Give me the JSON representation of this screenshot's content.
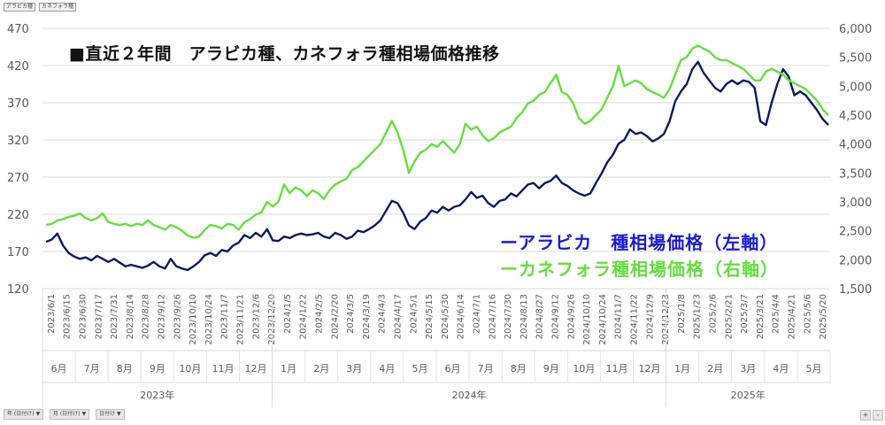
{
  "toolbar": {
    "field_1": "アラビカ種",
    "field_2": "カネフォラ種",
    "chips": [
      "年 (日付け)",
      "月 (日付け)",
      "日付け"
    ]
  },
  "zoom": {
    "plus": "+",
    "minus": "-"
  },
  "colors": {
    "arabica": "#0d1a5c",
    "canephora": "#66dd3f",
    "arabica_legend": "#1a1ad6"
  },
  "chart_data": {
    "type": "line",
    "title": "■直近２年間　アラビカ種、カネフォラ種相場価格推移",
    "legend": {
      "placement": "bottom-right",
      "entries": [
        "ーアラビカ　種相場価格（左軸）",
        "ーカネフォラ種相場価格（右軸）"
      ]
    },
    "y_left": {
      "ticks": [
        "120",
        "170",
        "220",
        "270",
        "320",
        "370",
        "420",
        "470"
      ],
      "range": [
        120,
        470
      ]
    },
    "y_right": {
      "ticks": [
        "1,500",
        "2,000",
        "2,500",
        "3,000",
        "3,500",
        "4,000",
        "4,500",
        "5,000",
        "5,500",
        "6,000"
      ],
      "range": [
        1500,
        6000
      ]
    },
    "x_labels": [
      "2023/6/1",
      "2023/6/15",
      "2023/6/30",
      "2023/7/17",
      "2023/7/31",
      "2023/8/14",
      "2023/8/28",
      "2023/9/12",
      "2023/9/26",
      "2023/10/10",
      "2023/10/24",
      "2023/11/7",
      "2023/11/21",
      "2023/12/6",
      "2023/12/20",
      "2024/1/5",
      "2024/1/22",
      "2024/2/5",
      "2024/2/20",
      "2024/3/5",
      "2024/3/19",
      "2024/4/3",
      "2024/4/17",
      "2024/5/1",
      "2024/5/15",
      "2024/5/30",
      "2024/6/14",
      "2024/7/1",
      "2024/7/16",
      "2024/7/30",
      "2024/8/13",
      "2024/8/27",
      "2024/9/12",
      "2024/9/26",
      "2024/10/10",
      "2024/10/24",
      "2024/11/7",
      "2024/11/22",
      "2024/12/9",
      "2024/12/23",
      "2025/1/8",
      "2025/1/23",
      "2025/2/6",
      "2025/2/21",
      "2025/3/7",
      "2025/3/21",
      "2025/4/4",
      "2025/4/21",
      "2025/5/6",
      "2025/5/20"
    ],
    "months": [
      "6月",
      "7月",
      "8月",
      "9月",
      "10月",
      "11月",
      "12月",
      "1月",
      "2月",
      "3月",
      "4月",
      "5月",
      "6月",
      "7月",
      "8月",
      "9月",
      "10月",
      "11月",
      "12月",
      "1月",
      "2月",
      "3月",
      "4月",
      "5月"
    ],
    "years": [
      "2023年",
      "2024年",
      "2025年"
    ],
    "series": [
      {
        "name": "アラビカ種相場価格",
        "axis": "left",
        "values": [
          [
            0,
            183
          ],
          [
            2,
            186
          ],
          [
            4,
            194
          ],
          [
            6,
            178
          ],
          [
            8,
            168
          ],
          [
            10,
            163
          ],
          [
            12,
            160
          ],
          [
            14,
            162
          ],
          [
            16,
            158
          ],
          [
            18,
            164
          ],
          [
            20,
            160
          ],
          [
            22,
            156
          ],
          [
            24,
            160
          ],
          [
            26,
            155
          ],
          [
            28,
            150
          ],
          [
            30,
            152
          ],
          [
            32,
            150
          ],
          [
            34,
            148
          ],
          [
            36,
            151
          ],
          [
            38,
            156
          ],
          [
            40,
            150
          ],
          [
            42,
            147
          ],
          [
            44,
            160
          ],
          [
            46,
            150
          ],
          [
            48,
            147
          ],
          [
            50,
            145
          ],
          [
            52,
            150
          ],
          [
            54,
            156
          ],
          [
            56,
            165
          ],
          [
            58,
            168
          ],
          [
            60,
            164
          ],
          [
            62,
            172
          ],
          [
            64,
            170
          ],
          [
            66,
            178
          ],
          [
            68,
            182
          ],
          [
            70,
            192
          ],
          [
            72,
            188
          ],
          [
            74,
            195
          ],
          [
            76,
            190
          ],
          [
            78,
            200
          ],
          [
            80,
            185
          ],
          [
            82,
            184
          ],
          [
            84,
            190
          ],
          [
            86,
            188
          ],
          [
            88,
            192
          ],
          [
            90,
            194
          ],
          [
            92,
            192
          ],
          [
            94,
            193
          ],
          [
            96,
            195
          ],
          [
            98,
            190
          ],
          [
            100,
            188
          ],
          [
            102,
            195
          ],
          [
            104,
            192
          ],
          [
            106,
            187
          ],
          [
            108,
            190
          ],
          [
            110,
            198
          ],
          [
            112,
            196
          ],
          [
            114,
            200
          ],
          [
            116,
            205
          ],
          [
            118,
            212
          ],
          [
            120,
            225
          ],
          [
            122,
            238
          ],
          [
            124,
            235
          ],
          [
            126,
            222
          ],
          [
            128,
            205
          ],
          [
            130,
            200
          ],
          [
            132,
            210
          ],
          [
            134,
            215
          ],
          [
            136,
            225
          ],
          [
            138,
            222
          ],
          [
            140,
            230
          ],
          [
            142,
            225
          ],
          [
            144,
            230
          ],
          [
            146,
            232
          ],
          [
            148,
            240
          ],
          [
            150,
            250
          ],
          [
            152,
            242
          ],
          [
            154,
            245
          ],
          [
            156,
            235
          ],
          [
            158,
            230
          ],
          [
            160,
            238
          ],
          [
            162,
            240
          ],
          [
            164,
            248
          ],
          [
            166,
            244
          ],
          [
            168,
            252
          ],
          [
            170,
            260
          ],
          [
            172,
            262
          ],
          [
            174,
            255
          ],
          [
            176,
            262
          ],
          [
            178,
            265
          ],
          [
            180,
            272
          ],
          [
            182,
            262
          ],
          [
            184,
            258
          ],
          [
            186,
            252
          ],
          [
            188,
            248
          ],
          [
            190,
            245
          ],
          [
            192,
            248
          ],
          [
            194,
            262
          ],
          [
            196,
            275
          ],
          [
            198,
            290
          ],
          [
            200,
            300
          ],
          [
            202,
            315
          ],
          [
            204,
            320
          ],
          [
            206,
            334
          ],
          [
            208,
            328
          ],
          [
            210,
            330
          ],
          [
            212,
            325
          ],
          [
            214,
            318
          ],
          [
            216,
            322
          ],
          [
            218,
            328
          ],
          [
            220,
            345
          ],
          [
            222,
            372
          ],
          [
            224,
            385
          ],
          [
            226,
            395
          ],
          [
            228,
            415
          ],
          [
            230,
            425
          ],
          [
            232,
            410
          ],
          [
            234,
            400
          ],
          [
            236,
            390
          ],
          [
            238,
            385
          ],
          [
            240,
            395
          ],
          [
            242,
            400
          ],
          [
            244,
            395
          ],
          [
            246,
            400
          ],
          [
            248,
            398
          ],
          [
            250,
            390
          ],
          [
            252,
            345
          ],
          [
            254,
            340
          ],
          [
            256,
            370
          ],
          [
            258,
            395
          ],
          [
            260,
            415
          ],
          [
            262,
            405
          ],
          [
            264,
            380
          ],
          [
            266,
            385
          ],
          [
            268,
            380
          ],
          [
            270,
            370
          ],
          [
            272,
            360
          ],
          [
            274,
            348
          ],
          [
            276,
            340
          ]
        ]
      },
      {
        "name": "カネフォラ種相場価格",
        "axis": "right",
        "values": [
          [
            0,
            2600
          ],
          [
            2,
            2620
          ],
          [
            4,
            2680
          ],
          [
            6,
            2700
          ],
          [
            8,
            2740
          ],
          [
            10,
            2760
          ],
          [
            12,
            2800
          ],
          [
            14,
            2720
          ],
          [
            16,
            2680
          ],
          [
            18,
            2720
          ],
          [
            20,
            2800
          ],
          [
            22,
            2650
          ],
          [
            24,
            2620
          ],
          [
            26,
            2600
          ],
          [
            28,
            2620
          ],
          [
            30,
            2580
          ],
          [
            32,
            2620
          ],
          [
            34,
            2600
          ],
          [
            36,
            2680
          ],
          [
            38,
            2600
          ],
          [
            40,
            2560
          ],
          [
            42,
            2520
          ],
          [
            44,
            2600
          ],
          [
            46,
            2560
          ],
          [
            48,
            2500
          ],
          [
            50,
            2420
          ],
          [
            52,
            2380
          ],
          [
            54,
            2400
          ],
          [
            56,
            2520
          ],
          [
            58,
            2600
          ],
          [
            60,
            2580
          ],
          [
            62,
            2540
          ],
          [
            64,
            2620
          ],
          [
            66,
            2600
          ],
          [
            68,
            2520
          ],
          [
            70,
            2650
          ],
          [
            72,
            2700
          ],
          [
            74,
            2780
          ],
          [
            76,
            2820
          ],
          [
            78,
            3000
          ],
          [
            80,
            2920
          ],
          [
            82,
            3000
          ],
          [
            84,
            3300
          ],
          [
            86,
            3150
          ],
          [
            88,
            3250
          ],
          [
            90,
            3200
          ],
          [
            92,
            3100
          ],
          [
            94,
            3200
          ],
          [
            96,
            3150
          ],
          [
            98,
            3050
          ],
          [
            100,
            3200
          ],
          [
            102,
            3300
          ],
          [
            104,
            3350
          ],
          [
            106,
            3400
          ],
          [
            108,
            3550
          ],
          [
            110,
            3600
          ],
          [
            112,
            3700
          ],
          [
            114,
            3800
          ],
          [
            116,
            3900
          ],
          [
            118,
            4000
          ],
          [
            120,
            4200
          ],
          [
            122,
            4400
          ],
          [
            124,
            4200
          ],
          [
            126,
            3900
          ],
          [
            128,
            3500
          ],
          [
            130,
            3700
          ],
          [
            132,
            3850
          ],
          [
            134,
            3900
          ],
          [
            136,
            4000
          ],
          [
            138,
            3950
          ],
          [
            140,
            4050
          ],
          [
            142,
            3950
          ],
          [
            144,
            3850
          ],
          [
            146,
            4000
          ],
          [
            148,
            4350
          ],
          [
            150,
            4250
          ],
          [
            152,
            4300
          ],
          [
            154,
            4150
          ],
          [
            156,
            4050
          ],
          [
            158,
            4100
          ],
          [
            160,
            4200
          ],
          [
            162,
            4250
          ],
          [
            164,
            4300
          ],
          [
            166,
            4450
          ],
          [
            168,
            4550
          ],
          [
            170,
            4700
          ],
          [
            172,
            4750
          ],
          [
            174,
            4850
          ],
          [
            176,
            4900
          ],
          [
            178,
            5050
          ],
          [
            180,
            5200
          ],
          [
            182,
            4900
          ],
          [
            184,
            4850
          ],
          [
            186,
            4700
          ],
          [
            188,
            4450
          ],
          [
            190,
            4350
          ],
          [
            192,
            4400
          ],
          [
            194,
            4500
          ],
          [
            196,
            4600
          ],
          [
            198,
            4800
          ],
          [
            200,
            5000
          ],
          [
            202,
            5350
          ],
          [
            204,
            5000
          ],
          [
            206,
            5050
          ],
          [
            208,
            5100
          ],
          [
            210,
            5050
          ],
          [
            212,
            4950
          ],
          [
            214,
            4900
          ],
          [
            216,
            4850
          ],
          [
            218,
            4800
          ],
          [
            220,
            4950
          ],
          [
            222,
            5200
          ],
          [
            224,
            5450
          ],
          [
            226,
            5500
          ],
          [
            228,
            5650
          ],
          [
            230,
            5700
          ],
          [
            232,
            5650
          ],
          [
            234,
            5600
          ],
          [
            236,
            5500
          ],
          [
            238,
            5450
          ],
          [
            240,
            5450
          ],
          [
            242,
            5400
          ],
          [
            244,
            5350
          ],
          [
            246,
            5300
          ],
          [
            248,
            5200
          ],
          [
            250,
            5100
          ],
          [
            252,
            5100
          ],
          [
            254,
            5250
          ],
          [
            256,
            5300
          ],
          [
            258,
            5250
          ],
          [
            260,
            5200
          ],
          [
            262,
            5100
          ],
          [
            264,
            5050
          ],
          [
            266,
            5000
          ],
          [
            268,
            4950
          ],
          [
            270,
            4850
          ],
          [
            272,
            4750
          ],
          [
            274,
            4600
          ],
          [
            276,
            4500
          ]
        ]
      }
    ]
  }
}
